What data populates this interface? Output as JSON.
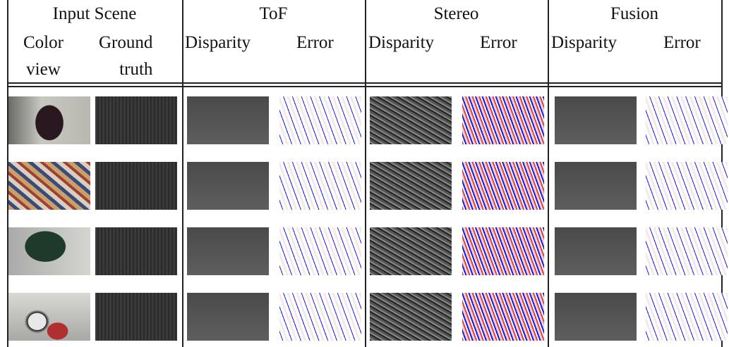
{
  "header": {
    "groups": [
      "Input Scene",
      "ToF",
      "Stereo",
      "Fusion"
    ],
    "columns": [
      "Color view",
      "Ground truth",
      "Disparity",
      "Error",
      "Disparity",
      "Error",
      "Disparity",
      "Error"
    ]
  }
}
